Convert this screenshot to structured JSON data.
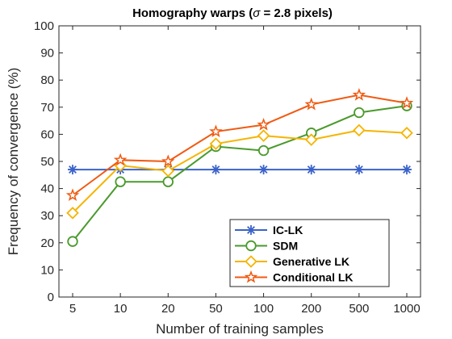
{
  "chart_data": {
    "type": "line",
    "title_main": "Homography warps (",
    "title_sigma": "σ",
    "title_rest": " = 2.8 pixels)",
    "xlabel": "Number of training samples",
    "ylabel": "Frequency of convergence (%)",
    "categories": [
      "5",
      "10",
      "20",
      "50",
      "100",
      "200",
      "500",
      "1000"
    ],
    "ylim": [
      0,
      100
    ],
    "yticks": [
      0,
      10,
      20,
      30,
      40,
      50,
      60,
      70,
      80,
      90,
      100
    ],
    "grid": false,
    "legend_position": "bottom-right",
    "series": [
      {
        "name": "IC-LK",
        "marker": "asterisk",
        "color": "#3a62c9",
        "values": [
          47,
          47,
          47,
          47,
          47,
          47,
          47,
          47
        ]
      },
      {
        "name": "SDM",
        "marker": "circle",
        "color": "#4a9a2c",
        "values": [
          20.5,
          42.5,
          42.5,
          55.5,
          54,
          60.5,
          68,
          70.5
        ]
      },
      {
        "name": "Generative LK",
        "marker": "diamond",
        "color": "#f5b400",
        "values": [
          31,
          48.5,
          46.5,
          56.5,
          59.5,
          58,
          61.5,
          60.5
        ]
      },
      {
        "name": "Conditional LK",
        "marker": "star",
        "color": "#f05a12",
        "values": [
          37.5,
          50.5,
          50,
          61,
          63.5,
          71,
          74.5,
          71.5
        ]
      }
    ]
  }
}
